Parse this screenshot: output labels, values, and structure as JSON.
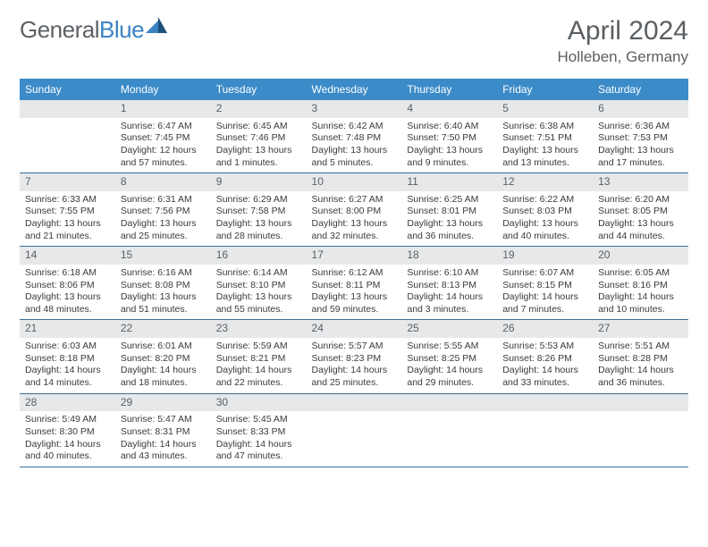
{
  "brand": {
    "part1": "General",
    "part2": "Blue"
  },
  "title": "April 2024",
  "location": "Holleben, Germany",
  "day_headers": [
    "Sunday",
    "Monday",
    "Tuesday",
    "Wednesday",
    "Thursday",
    "Friday",
    "Saturday"
  ],
  "colors": {
    "header_bg": "#3b8bc9",
    "header_text": "#ffffff",
    "daynum_bg": "#e7e8e9",
    "row_border": "#3b6d94",
    "text": "#3a3a3a",
    "title_text": "#5a5f63",
    "logo_accent": "#3b82c4",
    "logo_accent_dark": "#1e4f7a"
  },
  "weeks": [
    [
      {
        "n": "",
        "lines": []
      },
      {
        "n": "1",
        "lines": [
          "Sunrise: 6:47 AM",
          "Sunset: 7:45 PM",
          "Daylight: 12 hours",
          "and 57 minutes."
        ]
      },
      {
        "n": "2",
        "lines": [
          "Sunrise: 6:45 AM",
          "Sunset: 7:46 PM",
          "Daylight: 13 hours",
          "and 1 minutes."
        ]
      },
      {
        "n": "3",
        "lines": [
          "Sunrise: 6:42 AM",
          "Sunset: 7:48 PM",
          "Daylight: 13 hours",
          "and 5 minutes."
        ]
      },
      {
        "n": "4",
        "lines": [
          "Sunrise: 6:40 AM",
          "Sunset: 7:50 PM",
          "Daylight: 13 hours",
          "and 9 minutes."
        ]
      },
      {
        "n": "5",
        "lines": [
          "Sunrise: 6:38 AM",
          "Sunset: 7:51 PM",
          "Daylight: 13 hours",
          "and 13 minutes."
        ]
      },
      {
        "n": "6",
        "lines": [
          "Sunrise: 6:36 AM",
          "Sunset: 7:53 PM",
          "Daylight: 13 hours",
          "and 17 minutes."
        ]
      }
    ],
    [
      {
        "n": "7",
        "lines": [
          "Sunrise: 6:33 AM",
          "Sunset: 7:55 PM",
          "Daylight: 13 hours",
          "and 21 minutes."
        ]
      },
      {
        "n": "8",
        "lines": [
          "Sunrise: 6:31 AM",
          "Sunset: 7:56 PM",
          "Daylight: 13 hours",
          "and 25 minutes."
        ]
      },
      {
        "n": "9",
        "lines": [
          "Sunrise: 6:29 AM",
          "Sunset: 7:58 PM",
          "Daylight: 13 hours",
          "and 28 minutes."
        ]
      },
      {
        "n": "10",
        "lines": [
          "Sunrise: 6:27 AM",
          "Sunset: 8:00 PM",
          "Daylight: 13 hours",
          "and 32 minutes."
        ]
      },
      {
        "n": "11",
        "lines": [
          "Sunrise: 6:25 AM",
          "Sunset: 8:01 PM",
          "Daylight: 13 hours",
          "and 36 minutes."
        ]
      },
      {
        "n": "12",
        "lines": [
          "Sunrise: 6:22 AM",
          "Sunset: 8:03 PM",
          "Daylight: 13 hours",
          "and 40 minutes."
        ]
      },
      {
        "n": "13",
        "lines": [
          "Sunrise: 6:20 AM",
          "Sunset: 8:05 PM",
          "Daylight: 13 hours",
          "and 44 minutes."
        ]
      }
    ],
    [
      {
        "n": "14",
        "lines": [
          "Sunrise: 6:18 AM",
          "Sunset: 8:06 PM",
          "Daylight: 13 hours",
          "and 48 minutes."
        ]
      },
      {
        "n": "15",
        "lines": [
          "Sunrise: 6:16 AM",
          "Sunset: 8:08 PM",
          "Daylight: 13 hours",
          "and 51 minutes."
        ]
      },
      {
        "n": "16",
        "lines": [
          "Sunrise: 6:14 AM",
          "Sunset: 8:10 PM",
          "Daylight: 13 hours",
          "and 55 minutes."
        ]
      },
      {
        "n": "17",
        "lines": [
          "Sunrise: 6:12 AM",
          "Sunset: 8:11 PM",
          "Daylight: 13 hours",
          "and 59 minutes."
        ]
      },
      {
        "n": "18",
        "lines": [
          "Sunrise: 6:10 AM",
          "Sunset: 8:13 PM",
          "Daylight: 14 hours",
          "and 3 minutes."
        ]
      },
      {
        "n": "19",
        "lines": [
          "Sunrise: 6:07 AM",
          "Sunset: 8:15 PM",
          "Daylight: 14 hours",
          "and 7 minutes."
        ]
      },
      {
        "n": "20",
        "lines": [
          "Sunrise: 6:05 AM",
          "Sunset: 8:16 PM",
          "Daylight: 14 hours",
          "and 10 minutes."
        ]
      }
    ],
    [
      {
        "n": "21",
        "lines": [
          "Sunrise: 6:03 AM",
          "Sunset: 8:18 PM",
          "Daylight: 14 hours",
          "and 14 minutes."
        ]
      },
      {
        "n": "22",
        "lines": [
          "Sunrise: 6:01 AM",
          "Sunset: 8:20 PM",
          "Daylight: 14 hours",
          "and 18 minutes."
        ]
      },
      {
        "n": "23",
        "lines": [
          "Sunrise: 5:59 AM",
          "Sunset: 8:21 PM",
          "Daylight: 14 hours",
          "and 22 minutes."
        ]
      },
      {
        "n": "24",
        "lines": [
          "Sunrise: 5:57 AM",
          "Sunset: 8:23 PM",
          "Daylight: 14 hours",
          "and 25 minutes."
        ]
      },
      {
        "n": "25",
        "lines": [
          "Sunrise: 5:55 AM",
          "Sunset: 8:25 PM",
          "Daylight: 14 hours",
          "and 29 minutes."
        ]
      },
      {
        "n": "26",
        "lines": [
          "Sunrise: 5:53 AM",
          "Sunset: 8:26 PM",
          "Daylight: 14 hours",
          "and 33 minutes."
        ]
      },
      {
        "n": "27",
        "lines": [
          "Sunrise: 5:51 AM",
          "Sunset: 8:28 PM",
          "Daylight: 14 hours",
          "and 36 minutes."
        ]
      }
    ],
    [
      {
        "n": "28",
        "lines": [
          "Sunrise: 5:49 AM",
          "Sunset: 8:30 PM",
          "Daylight: 14 hours",
          "and 40 minutes."
        ]
      },
      {
        "n": "29",
        "lines": [
          "Sunrise: 5:47 AM",
          "Sunset: 8:31 PM",
          "Daylight: 14 hours",
          "and 43 minutes."
        ]
      },
      {
        "n": "30",
        "lines": [
          "Sunrise: 5:45 AM",
          "Sunset: 8:33 PM",
          "Daylight: 14 hours",
          "and 47 minutes."
        ]
      },
      {
        "n": "",
        "lines": []
      },
      {
        "n": "",
        "lines": []
      },
      {
        "n": "",
        "lines": []
      },
      {
        "n": "",
        "lines": []
      }
    ]
  ]
}
